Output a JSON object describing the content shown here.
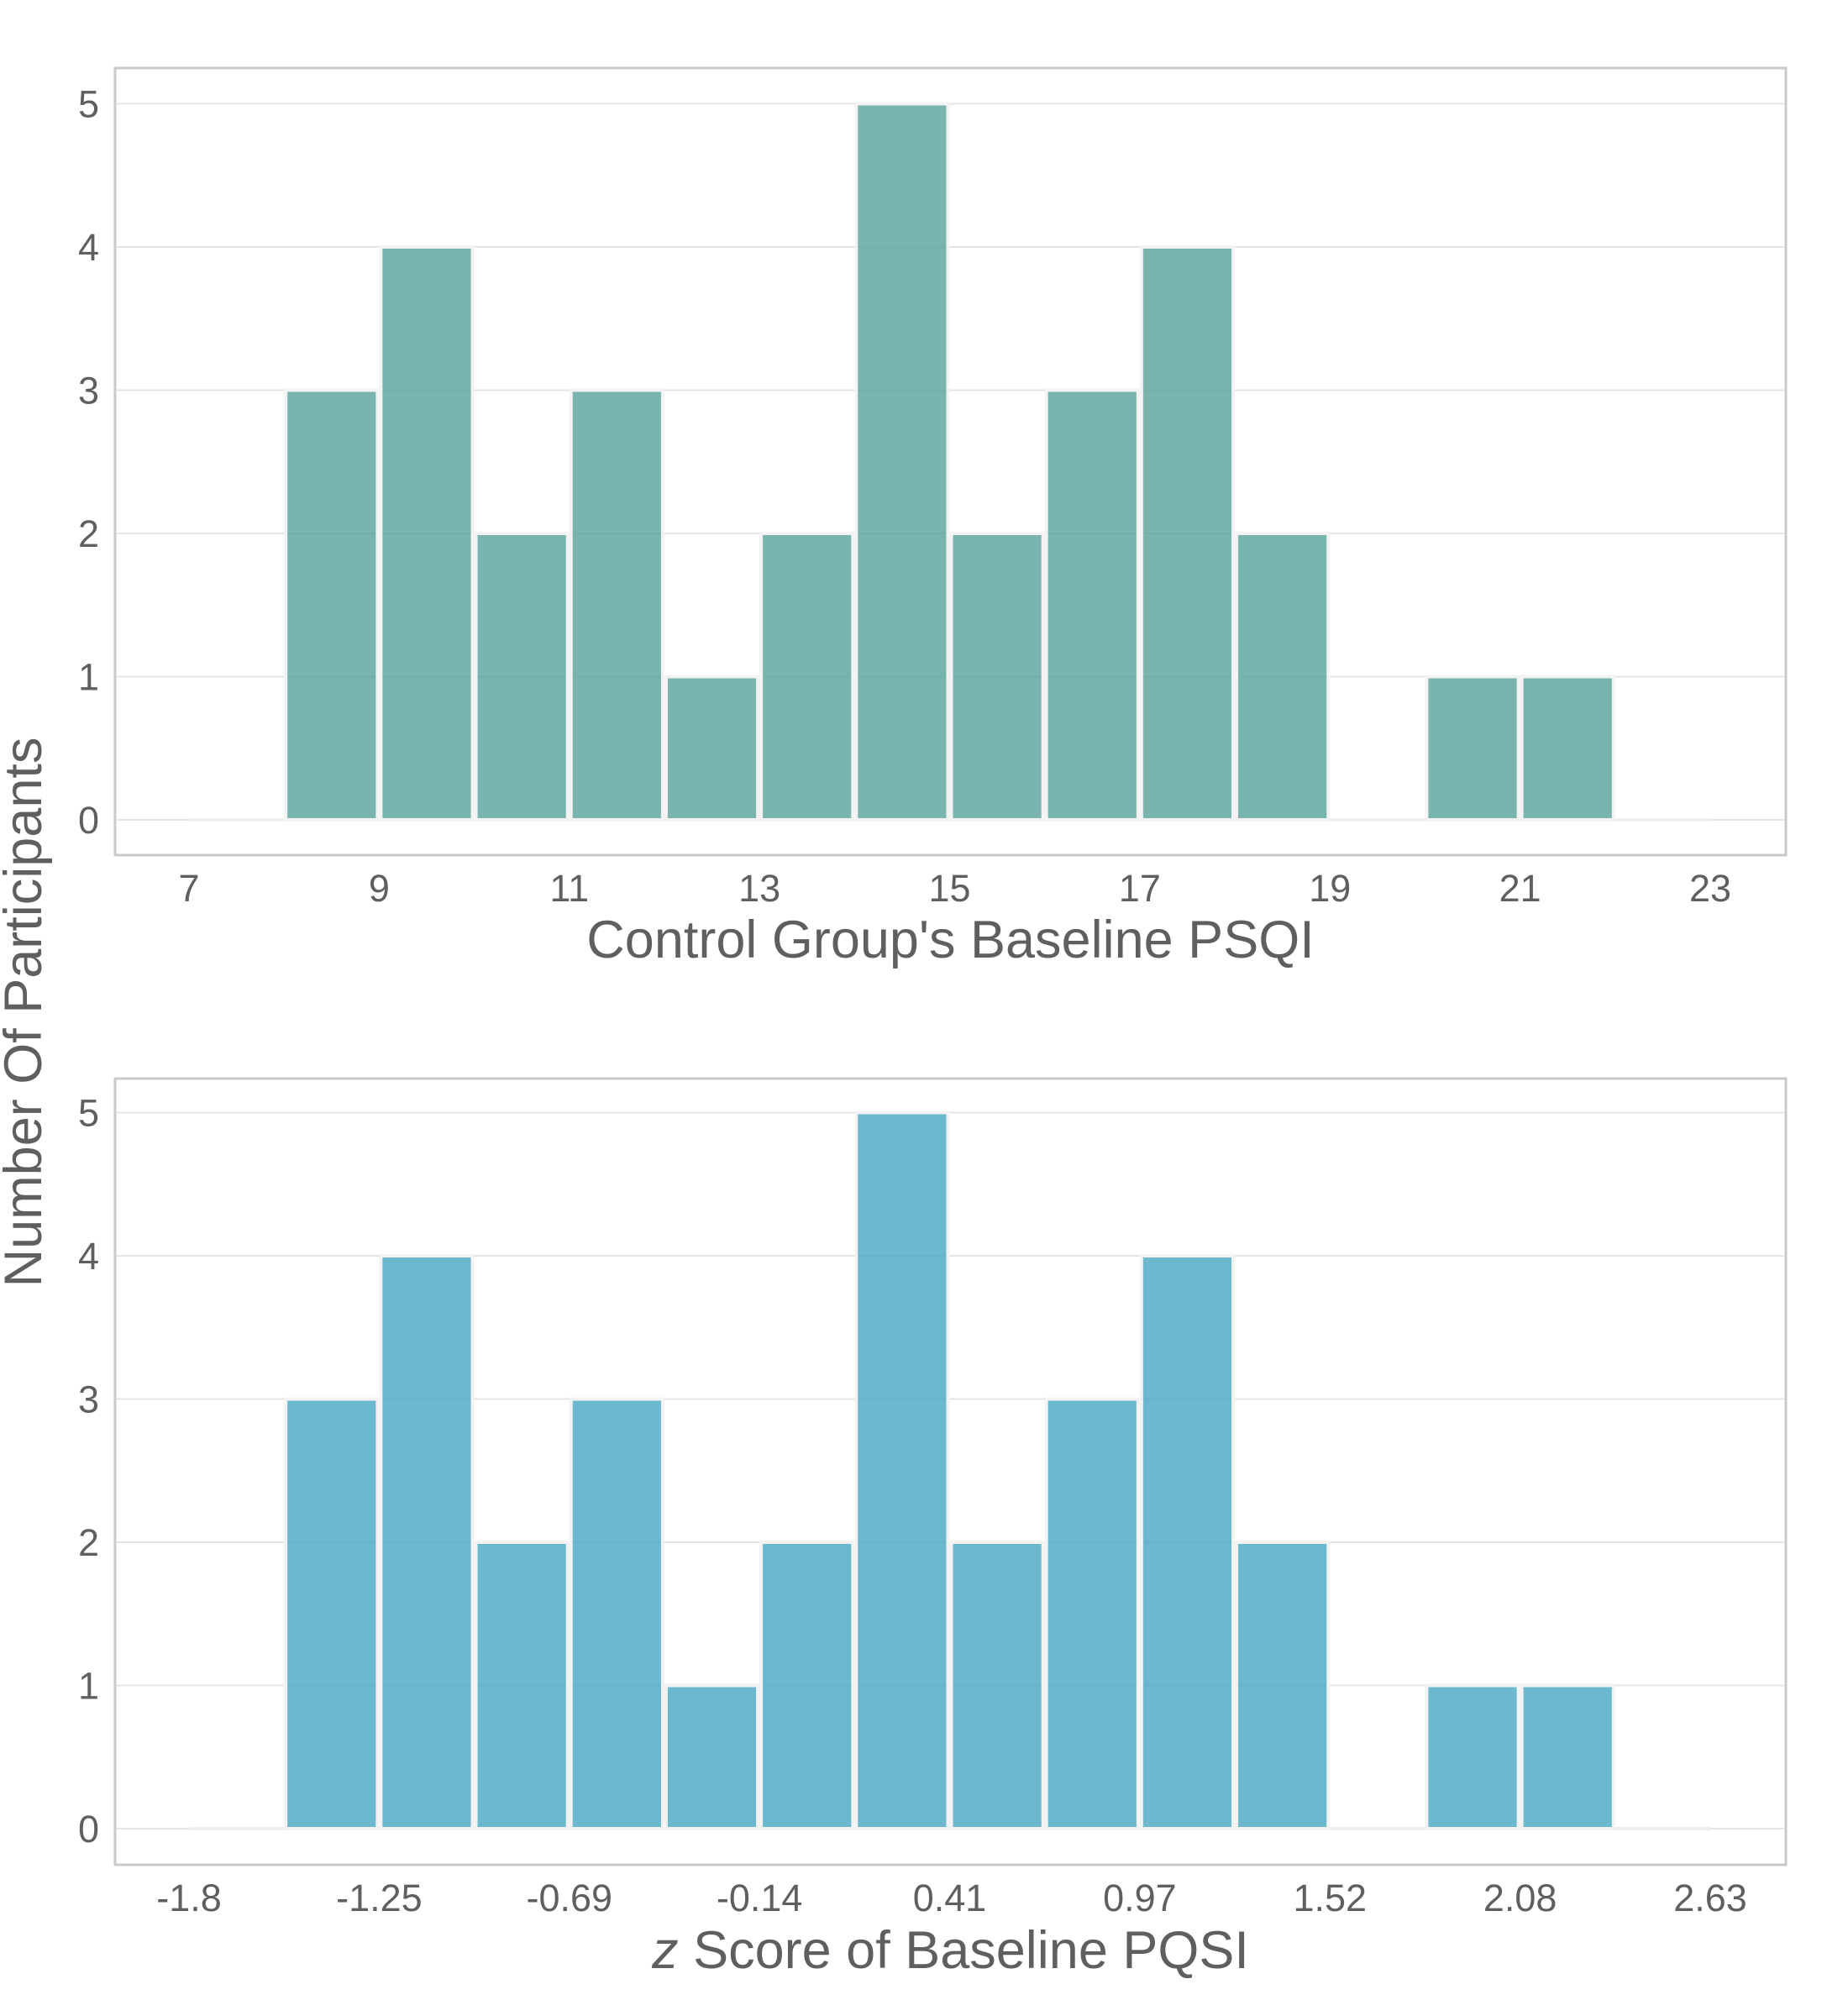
{
  "figure": {
    "ylabel": "Number Of Participants"
  },
  "chart_data": [
    {
      "type": "bar",
      "xlabel": "Control Group's Baseline PSQI",
      "ylabel": "Number Of Participants",
      "x_ticks": [
        "7",
        "9",
        "11",
        "13",
        "15",
        "17",
        "19",
        "21",
        "23"
      ],
      "y_ticks": [
        "0",
        "1",
        "2",
        "3",
        "4",
        "5"
      ],
      "xlim": [
        7,
        23
      ],
      "ylim": [
        0,
        5.25
      ],
      "bin_width": 1,
      "bins": [
        {
          "start": 7,
          "value": 0
        },
        {
          "start": 8,
          "value": 3
        },
        {
          "start": 9,
          "value": 4
        },
        {
          "start": 10,
          "value": 2
        },
        {
          "start": 11,
          "value": 3
        },
        {
          "start": 12,
          "value": 1
        },
        {
          "start": 13,
          "value": 2
        },
        {
          "start": 14,
          "value": 5
        },
        {
          "start": 15,
          "value": 2
        },
        {
          "start": 16,
          "value": 3
        },
        {
          "start": 17,
          "value": 4
        },
        {
          "start": 18,
          "value": 2
        },
        {
          "start": 19,
          "value": 0
        },
        {
          "start": 20,
          "value": 1
        },
        {
          "start": 21,
          "value": 1
        },
        {
          "start": 22,
          "value": 0
        }
      ],
      "color": "#5ca39d",
      "grid": true
    },
    {
      "type": "bar",
      "xlabel_italic": "z",
      "xlabel": " Score of Baseline PQSI",
      "ylabel": "Number Of Participants",
      "x_ticks": [
        "-1.8",
        "-1.25",
        "-0.69",
        "-0.14",
        "0.41",
        "0.97",
        "1.52",
        "2.08",
        "2.63"
      ],
      "y_ticks": [
        "0",
        "1",
        "2",
        "3",
        "4",
        "5"
      ],
      "xlim": [
        -1.8,
        2.63
      ],
      "ylim": [
        0,
        5.25
      ],
      "bin_width": 0.277,
      "bins": [
        {
          "start": -1.8,
          "value": 0
        },
        {
          "start": -1.52,
          "value": 3
        },
        {
          "start": -1.25,
          "value": 4
        },
        {
          "start": -0.97,
          "value": 2
        },
        {
          "start": -0.69,
          "value": 3
        },
        {
          "start": -0.42,
          "value": 1
        },
        {
          "start": -0.14,
          "value": 2
        },
        {
          "start": 0.14,
          "value": 5
        },
        {
          "start": 0.41,
          "value": 2
        },
        {
          "start": 0.69,
          "value": 3
        },
        {
          "start": 0.97,
          "value": 4
        },
        {
          "start": 1.24,
          "value": 2
        },
        {
          "start": 1.52,
          "value": 0
        },
        {
          "start": 1.8,
          "value": 1
        },
        {
          "start": 2.08,
          "value": 1
        },
        {
          "start": 2.35,
          "value": 0
        }
      ],
      "color": "#4aa8c4",
      "grid": true
    }
  ]
}
